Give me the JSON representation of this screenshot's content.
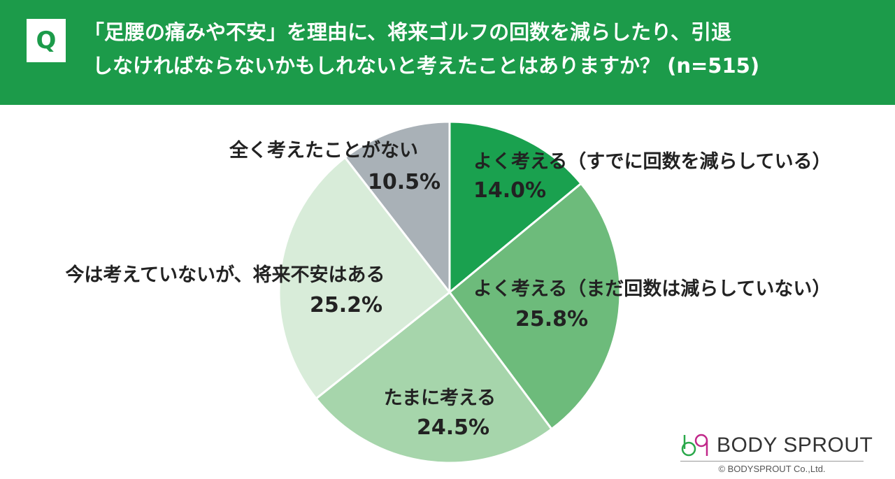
{
  "header": {
    "badge": "Q",
    "question_line1": "「足腰の痛みや不安」を理由に、将来ゴルフの回数を減らしたり、引退",
    "question_line2": "しなければならないかもしれないと考えたことはありますか？ (n=515)"
  },
  "chart_data": {
    "type": "pie",
    "start": "12 o'clock",
    "direction": "clockwise",
    "slices": [
      {
        "name": "よく考える（すでに回数を減らしている）",
        "value": 14.0,
        "label": "14.0%",
        "color": "#1aa14f"
      },
      {
        "name": "よく考える（まだ回数は減らしていない）",
        "value": 25.8,
        "label": "25.8%",
        "color": "#6dbb7b"
      },
      {
        "name": "たまに考える",
        "value": 24.5,
        "label": "24.5%",
        "color": "#a6d5ab"
      },
      {
        "name": "今は考えていないが、将来不安はある",
        "value": 25.2,
        "label": "25.2%",
        "color": "#d8ecd9"
      },
      {
        "name": "全く考えたことがない",
        "value": 10.5,
        "label": "10.5%",
        "color": "#a9b1b7"
      }
    ]
  },
  "brand": {
    "name": "BODY SPROUT",
    "copyright": "© BODYSPROUT Co.,Ltd."
  }
}
